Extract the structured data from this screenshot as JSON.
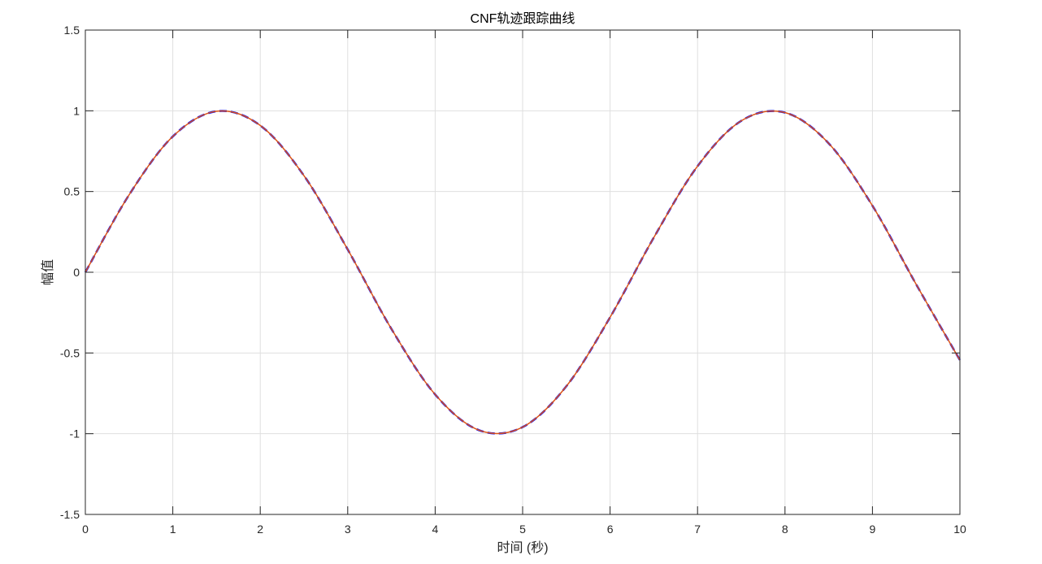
{
  "chart_data": {
    "type": "line",
    "title": "CNF轨迹跟踪曲线",
    "xlabel": "时间 (秒)",
    "ylabel": "幅值",
    "xlim": [
      0,
      10
    ],
    "ylim": [
      -1.5,
      1.5
    ],
    "xticks": [
      "0",
      "1",
      "2",
      "3",
      "4",
      "5",
      "6",
      "7",
      "8",
      "9",
      "10"
    ],
    "yticks": [
      "-1.5",
      "-1",
      "-0.5",
      "0",
      "0.5",
      "1",
      "1.5"
    ],
    "grid": true,
    "legend": "none",
    "x": [
      0,
      0.5,
      1,
      1.5,
      2,
      2.5,
      3,
      3.5,
      4,
      4.5,
      5,
      5.5,
      6,
      6.5,
      7,
      7.5,
      8,
      8.5,
      9,
      9.5,
      10
    ],
    "series": [
      {
        "color": "#0000ff",
        "style": "dashed",
        "values": [
          0,
          0.479,
          0.841,
          0.997,
          0.909,
          0.598,
          0.141,
          -0.351,
          -0.757,
          -0.978,
          -0.959,
          -0.706,
          -0.279,
          0.215,
          0.657,
          0.938,
          0.989,
          0.798,
          0.412,
          -0.075,
          -0.544
        ]
      },
      {
        "color": "#d95319",
        "style": "solid",
        "values": [
          0,
          0.479,
          0.841,
          0.997,
          0.909,
          0.598,
          0.141,
          -0.351,
          -0.757,
          -0.978,
          -0.959,
          -0.706,
          -0.279,
          0.215,
          0.657,
          0.938,
          0.989,
          0.798,
          0.412,
          -0.075,
          -0.544
        ]
      }
    ],
    "colors": {
      "axes": "#262626",
      "grid": "#dfdfdf"
    }
  }
}
